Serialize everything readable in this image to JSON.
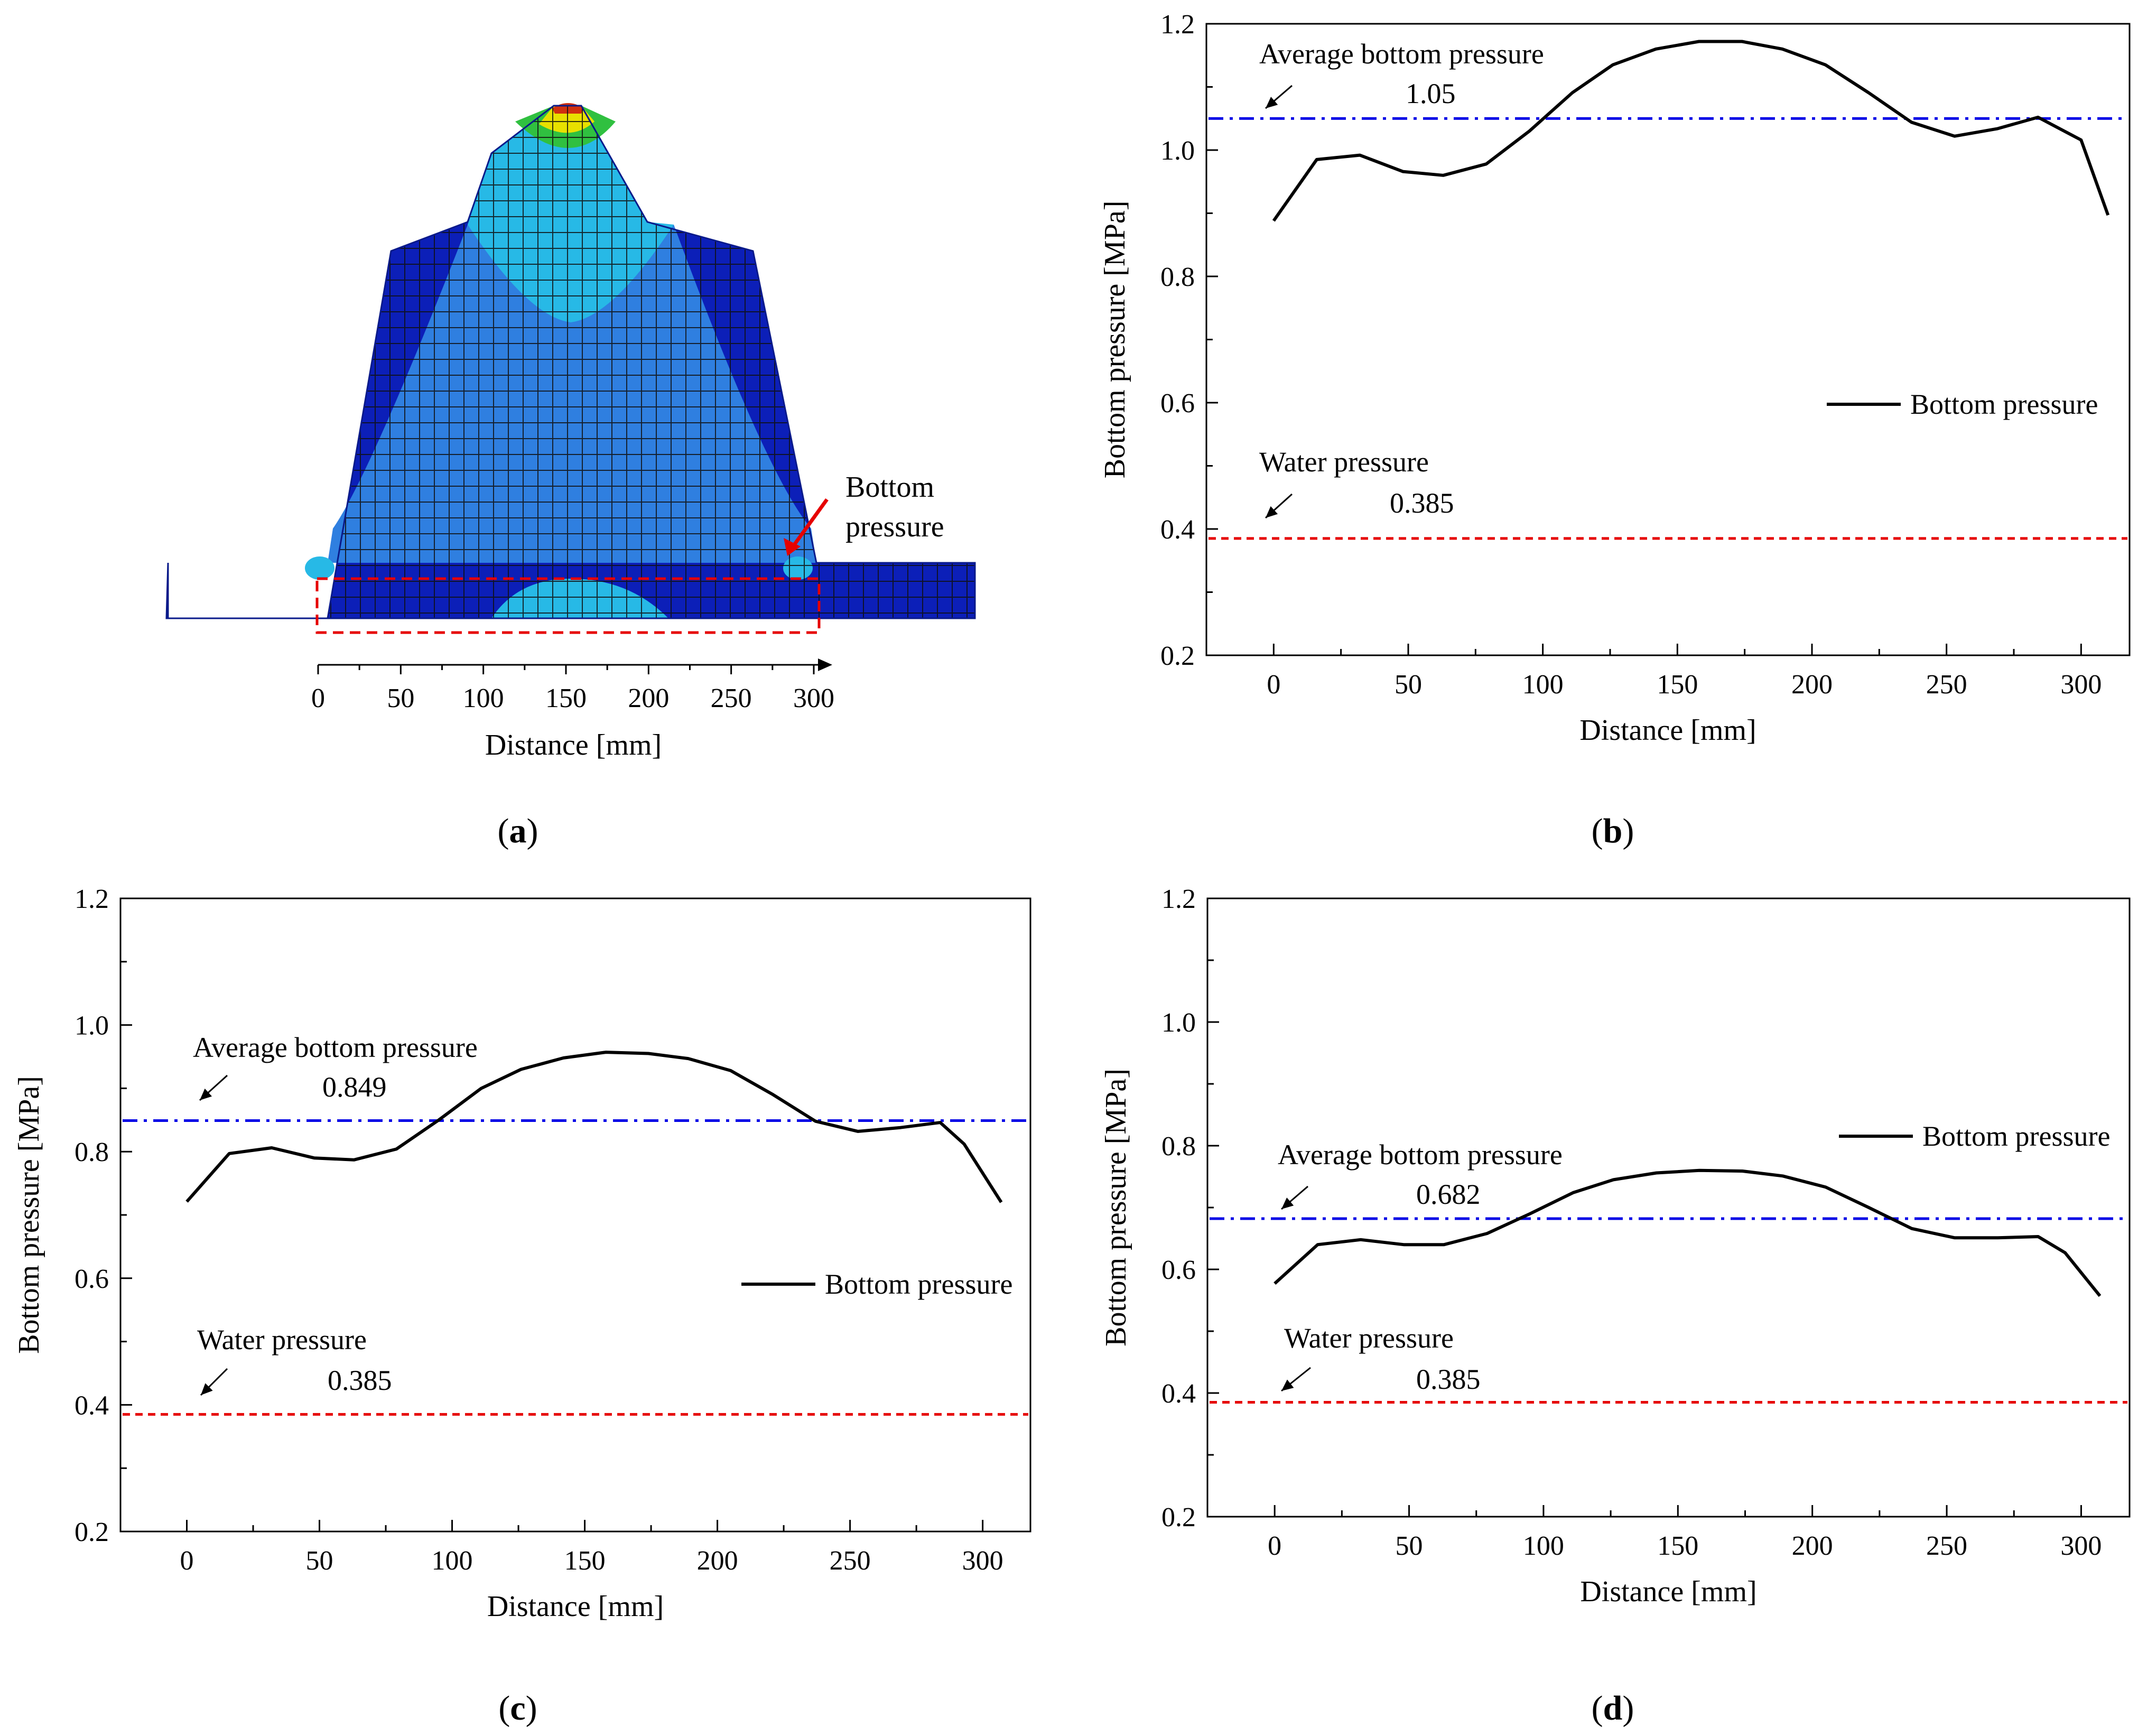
{
  "panel_labels": {
    "a": "a",
    "b": "b",
    "c": "c",
    "d": "d"
  },
  "colors": {
    "bottom_pressure": "#000000",
    "average_line": "#0000e6",
    "water_line": "#e60000",
    "annotation_arrow": "#e60000",
    "mesh_dark_blue": "#0c1fb8",
    "mesh_light_blue": "#2f7fe0",
    "mesh_cyan": "#27b9e6",
    "mesh_green": "#30c040",
    "mesh_yellow": "#e8e000",
    "mesh_red": "#d03010"
  },
  "panel_a": {
    "annotation": [
      "Bottom",
      "pressure"
    ],
    "xlabel": "Distance [mm]",
    "xticks": [
      0,
      50,
      100,
      150,
      200,
      250,
      300
    ],
    "xlim": [
      0,
      300
    ]
  },
  "chart_data": [
    {
      "panel": "b",
      "type": "line",
      "xlabel": "Distance [mm]",
      "ylabel": "Bottom pressure [MPa]",
      "xlim": [
        -25,
        318
      ],
      "ylim": [
        0.2,
        1.2
      ],
      "xticks": [
        0,
        50,
        100,
        150,
        200,
        250,
        300
      ],
      "yticks": [
        "0.2",
        "0.4",
        "0.6",
        "0.8",
        "1.0",
        "1.2"
      ],
      "legend": "Bottom pressure",
      "legend_position": "middle-right",
      "series": [
        {
          "name": "Bottom pressure",
          "x": [
            0,
            16,
            32,
            48,
            63,
            79,
            95,
            111,
            126,
            142,
            158,
            174,
            189,
            205,
            221,
            237,
            253,
            269,
            284,
            300,
            310
          ],
          "y": [
            0.888,
            0.985,
            0.992,
            0.966,
            0.96,
            0.978,
            1.03,
            1.091,
            1.135,
            1.16,
            1.172,
            1.172,
            1.16,
            1.135,
            1.091,
            1.044,
            1.022,
            1.034,
            1.052,
            1.016,
            0.897
          ]
        }
      ],
      "hlines": [
        {
          "value": 1.05,
          "value_label": "1.05",
          "label": "Average bottom pressure",
          "style": "dashdot",
          "color": "#0000e6"
        },
        {
          "value": 0.385,
          "value_label": "0.385",
          "label": "Water pressure",
          "style": "dashed",
          "color": "#e60000"
        }
      ]
    },
    {
      "panel": "c",
      "type": "line",
      "xlabel": "Distance [mm]",
      "ylabel": "Bottom pressure [MPa]",
      "xlim": [
        -25,
        318
      ],
      "ylim": [
        0.2,
        1.2
      ],
      "xticks": [
        0,
        50,
        100,
        150,
        200,
        250,
        300
      ],
      "yticks": [
        "0.2",
        "0.4",
        "0.6",
        "0.8",
        "1.0",
        "1.2"
      ],
      "legend": "Bottom pressure",
      "legend_position": "middle-right",
      "series": [
        {
          "name": "Bottom pressure",
          "x": [
            0,
            16,
            32,
            48,
            63,
            79,
            95,
            111,
            126,
            142,
            158,
            174,
            189,
            205,
            221,
            237,
            253,
            269,
            284,
            293,
            307
          ],
          "y": [
            0.721,
            0.797,
            0.806,
            0.79,
            0.787,
            0.804,
            0.85,
            0.9,
            0.93,
            0.948,
            0.957,
            0.955,
            0.947,
            0.928,
            0.89,
            0.848,
            0.832,
            0.838,
            0.846,
            0.812,
            0.72
          ]
        }
      ],
      "hlines": [
        {
          "value": 0.849,
          "value_label": "0.849",
          "label": "Average bottom pressure",
          "style": "dashdot",
          "color": "#0000e6"
        },
        {
          "value": 0.385,
          "value_label": "0.385",
          "label": "Water pressure",
          "style": "dashed",
          "color": "#e60000"
        }
      ]
    },
    {
      "panel": "d",
      "type": "line",
      "xlabel": "Distance [mm]",
      "ylabel": "Bottom pressure [MPa]",
      "xlim": [
        -25,
        318
      ],
      "ylim": [
        0.2,
        1.2
      ],
      "xticks": [
        0,
        50,
        100,
        150,
        200,
        250,
        300
      ],
      "yticks": [
        "0.2",
        "0.4",
        "0.6",
        "0.8",
        "1.0",
        "1.2"
      ],
      "legend": "Bottom pressure",
      "legend_position": "upper-right",
      "series": [
        {
          "name": "Bottom pressure",
          "x": [
            0,
            16,
            32,
            48,
            63,
            79,
            95,
            111,
            126,
            142,
            158,
            174,
            189,
            205,
            221,
            237,
            253,
            269,
            284,
            294,
            307
          ],
          "y": [
            0.577,
            0.64,
            0.648,
            0.64,
            0.64,
            0.658,
            0.69,
            0.724,
            0.745,
            0.756,
            0.76,
            0.759,
            0.751,
            0.733,
            0.7,
            0.666,
            0.651,
            0.651,
            0.653,
            0.627,
            0.557
          ]
        }
      ],
      "hlines": [
        {
          "value": 0.682,
          "value_label": "0.682",
          "label": "Average bottom pressure",
          "style": "dashdot",
          "color": "#0000e6"
        },
        {
          "value": 0.385,
          "value_label": "0.385",
          "label": "Water pressure",
          "style": "dashed",
          "color": "#e60000"
        }
      ]
    }
  ]
}
